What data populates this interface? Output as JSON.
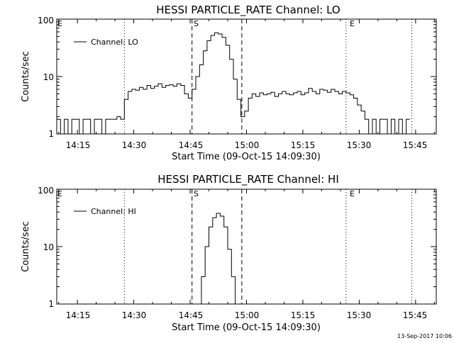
{
  "footer_stamp": "13-Sep-2017 10:06",
  "chart_data": [
    {
      "type": "line",
      "title": "HESSI PARTICLE_RATE Channel: LO",
      "xlabel": "Start Time (09-Oct-15 14:09:30)",
      "ylabel": "Counts/sec",
      "yscale": "log",
      "ylim": [
        1,
        100
      ],
      "xlim": [
        "14:09:30",
        "15:50:30"
      ],
      "xticks": [
        "14:15",
        "14:30",
        "14:45",
        "15:00",
        "15:15",
        "15:30",
        "15:45"
      ],
      "yticks": [
        "1",
        "10",
        "100"
      ],
      "legend": {
        "label": "Channel: LO",
        "placement": "top-left"
      },
      "grid": false,
      "annotations": [
        {
          "label": "E",
          "x": "14:09:30",
          "style": "none"
        },
        {
          "label": "",
          "x": "14:27:30",
          "style": "dotted"
        },
        {
          "label": "S",
          "x": "14:45:30",
          "style": "dashed"
        },
        {
          "label": "",
          "x": "14:58:45",
          "style": "dashed"
        },
        {
          "label": "E",
          "x": "15:26:30",
          "style": "dotted"
        },
        {
          "label": "",
          "x": "15:44:00",
          "style": "dotted"
        }
      ],
      "series": [
        {
          "name": "Channel: LO",
          "x": [
            "14:09:30",
            "14:10:30",
            "14:11:30",
            "14:12:30",
            "14:13:30",
            "14:14:30",
            "14:15:30",
            "14:16:30",
            "14:17:30",
            "14:18:30",
            "14:19:30",
            "14:20:30",
            "14:21:30",
            "14:22:30",
            "14:23:30",
            "14:24:30",
            "14:25:30",
            "14:26:30",
            "14:27:30",
            "14:28:30",
            "14:29:30",
            "14:30:30",
            "14:31:30",
            "14:32:30",
            "14:33:30",
            "14:34:30",
            "14:35:30",
            "14:36:30",
            "14:37:30",
            "14:38:30",
            "14:39:30",
            "14:40:30",
            "14:41:30",
            "14:42:30",
            "14:43:30",
            "14:44:30",
            "14:45:30",
            "14:46:30",
            "14:47:30",
            "14:48:30",
            "14:49:30",
            "14:50:30",
            "14:51:30",
            "14:52:30",
            "14:53:30",
            "14:54:30",
            "14:55:30",
            "14:56:30",
            "14:57:30",
            "14:58:30",
            "14:59:30",
            "15:00:30",
            "15:01:30",
            "15:02:30",
            "15:03:30",
            "15:04:30",
            "15:05:30",
            "15:06:30",
            "15:07:30",
            "15:08:30",
            "15:09:30",
            "15:10:30",
            "15:11:30",
            "15:12:30",
            "15:13:30",
            "15:14:30",
            "15:15:30",
            "15:16:30",
            "15:17:30",
            "15:18:30",
            "15:19:30",
            "15:20:30",
            "15:21:30",
            "15:22:30",
            "15:23:30",
            "15:24:30",
            "15:25:30",
            "15:26:30",
            "15:27:30",
            "15:28:30",
            "15:29:30",
            "15:30:30",
            "15:31:30",
            "15:32:30",
            "15:33:30",
            "15:34:30",
            "15:35:30",
            "15:36:30",
            "15:37:30",
            "15:38:30",
            "15:39:30",
            "15:40:30",
            "15:41:30",
            "15:42:30"
          ],
          "y": [
            1.8,
            1.0,
            1.8,
            1.0,
            1.8,
            1.8,
            1.0,
            1.8,
            1.8,
            1.0,
            1.8,
            1.8,
            1.0,
            1.8,
            1.8,
            1.8,
            2.0,
            1.8,
            4.0,
            5.5,
            6.0,
            5.8,
            6.5,
            6.0,
            7.0,
            6.2,
            6.8,
            7.5,
            6.5,
            7.0,
            7.2,
            6.8,
            7.5,
            7.0,
            5.0,
            4.2,
            6.0,
            10,
            16,
            28,
            42,
            52,
            58,
            55,
            48,
            35,
            20,
            9,
            4,
            2.0,
            2.5,
            4.2,
            5.0,
            4.5,
            5.2,
            4.8,
            5.0,
            5.3,
            4.5,
            5.0,
            5.5,
            5.0,
            4.8,
            5.2,
            5.5,
            4.8,
            5.2,
            6.2,
            5.5,
            5.0,
            6.0,
            5.8,
            5.3,
            6.0,
            5.5,
            5.0,
            5.5,
            5.2,
            4.8,
            4.2,
            3.2,
            2.5,
            1.8,
            1.0,
            1.8,
            1.0,
            1.8,
            1.8,
            1.0,
            1.8,
            1.0,
            1.8,
            1.0,
            1.8
          ]
        }
      ]
    },
    {
      "type": "line",
      "title": "HESSI PARTICLE_RATE Channel: HI",
      "xlabel": "Start Time (09-Oct-15 14:09:30)",
      "ylabel": "Counts/sec",
      "yscale": "log",
      "ylim": [
        1,
        100
      ],
      "xlim": [
        "14:09:30",
        "15:50:30"
      ],
      "xticks": [
        "14:15",
        "14:30",
        "14:45",
        "15:00",
        "15:15",
        "15:30",
        "15:45"
      ],
      "yticks": [
        "1",
        "10",
        "100"
      ],
      "legend": {
        "label": "Channel: HI",
        "placement": "top-left"
      },
      "grid": false,
      "annotations": [
        {
          "label": "E",
          "x": "14:09:30",
          "style": "none"
        },
        {
          "label": "",
          "x": "14:27:30",
          "style": "dotted"
        },
        {
          "label": "S",
          "x": "14:45:30",
          "style": "dashed"
        },
        {
          "label": "",
          "x": "14:58:45",
          "style": "dashed"
        },
        {
          "label": "E",
          "x": "15:26:30",
          "style": "dotted"
        },
        {
          "label": "",
          "x": "15:44:00",
          "style": "dotted"
        }
      ],
      "series": [
        {
          "name": "Channel: HI",
          "x": [
            "14:47:00",
            "14:48:00",
            "14:49:00",
            "14:50:00",
            "14:51:00",
            "14:52:00",
            "14:53:00",
            "14:54:00",
            "14:55:00",
            "14:56:00",
            "14:57:00"
          ],
          "y": [
            1.0,
            3.0,
            10,
            22,
            32,
            38,
            34,
            22,
            9,
            3,
            1.0
          ]
        }
      ]
    }
  ]
}
